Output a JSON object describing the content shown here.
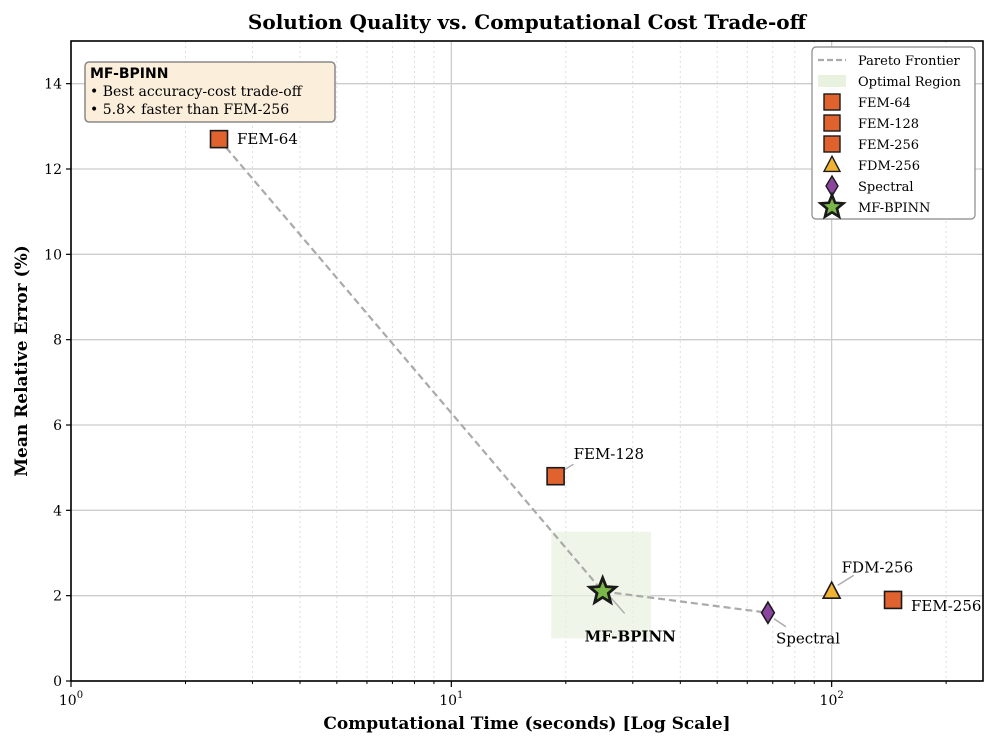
{
  "chart_data": {
    "type": "scatter",
    "title": "Solution Quality vs. Computational Cost Trade-off",
    "xlabel": "Computational Time (seconds) [Log Scale]",
    "ylabel": "Mean Relative Error (%)",
    "xscale": "log",
    "xlim": [
      1,
      250
    ],
    "ylim": [
      0,
      15
    ],
    "x_ticks": [
      {
        "value": 1,
        "base": "10",
        "exp": "0"
      },
      {
        "value": 10,
        "base": "10",
        "exp": "1"
      },
      {
        "value": 100,
        "base": "10",
        "exp": "2"
      }
    ],
    "y_ticks": [
      0,
      2,
      4,
      6,
      8,
      10,
      12,
      14
    ],
    "grid": true,
    "legend_position": "top-right",
    "points": [
      {
        "label": "FEM-64",
        "x": 2.45,
        "y": 12.7,
        "marker": "square",
        "color": "#e0622e"
      },
      {
        "label": "FEM-128",
        "x": 18.8,
        "y": 4.8,
        "marker": "square",
        "color": "#e0622e"
      },
      {
        "label": "FEM-256",
        "x": 145,
        "y": 1.9,
        "marker": "square",
        "color": "#e0622e"
      },
      {
        "label": "FDM-256",
        "x": 100,
        "y": 2.1,
        "marker": "triangle",
        "color": "#f0b232"
      },
      {
        "label": "Spectral",
        "x": 68,
        "y": 1.6,
        "marker": "diamond",
        "color": "#8b45a0"
      },
      {
        "label": "MF-BPINN",
        "x": 25,
        "y": 2.1,
        "marker": "star",
        "color": "#7ab648"
      }
    ],
    "pareto_frontier": [
      {
        "x": 2.45,
        "y": 12.7
      },
      {
        "x": 25,
        "y": 2.1
      },
      {
        "x": 68,
        "y": 1.6
      }
    ],
    "optimal_region": {
      "x": [
        18.3,
        33.5
      ],
      "y": [
        1.0,
        3.5
      ]
    },
    "legend": [
      {
        "label": "Pareto Frontier",
        "kind": "line",
        "color": "#aaaaaa"
      },
      {
        "label": "Optimal Region",
        "kind": "patch",
        "color": "#e8f2df"
      },
      {
        "label": "FEM-64",
        "kind": "square",
        "color": "#e0622e"
      },
      {
        "label": "FEM-128",
        "kind": "square",
        "color": "#e0622e"
      },
      {
        "label": "FEM-256",
        "kind": "square",
        "color": "#e0622e"
      },
      {
        "label": "FDM-256",
        "kind": "triangle",
        "color": "#f0b232"
      },
      {
        "label": "Spectral",
        "kind": "diamond",
        "color": "#8b45a0"
      },
      {
        "label": "MF-BPINN",
        "kind": "star",
        "color": "#7ab648"
      }
    ],
    "annotation_box": {
      "title": "MF-BPINN",
      "lines": [
        "• Best accuracy-cost trade-off",
        "• 5.8× faster than FEM-256"
      ]
    }
  }
}
